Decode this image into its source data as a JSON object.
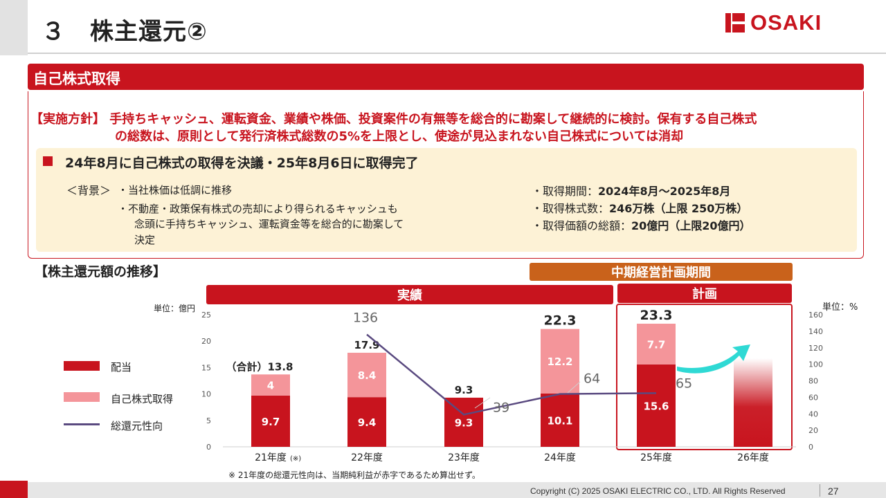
{
  "header": {
    "title": "３　株主還元②",
    "logo_text": "OSAKI"
  },
  "section": {
    "label": "自己株式取得",
    "policy_line1": "【実施方針】 手持ちキャッシュ、運転資金、業績や株価、投資案件の有無等を総合的に勘案して継続的に検討。保有する自己株式",
    "policy_line2": "の総数は、原則として発行済株式総数の5%を上限とし、使途が見込まれない自己株式については消却"
  },
  "panel": {
    "headline": "24年8月に自己株式の取得を決議・25年8月6日に取得完了",
    "background_label": "＜背景＞",
    "background_items": [
      "・当社株価は低調に推移",
      "・不動産・政策保有株式の売却により得られるキャッシュも",
      "念頭に手持ちキャッシュ、運転資金等を総合的に勘案して",
      "決定"
    ],
    "facts": [
      {
        "label": "・取得期間：",
        "value": "2024年8月～2025年8月"
      },
      {
        "label": "・取得株式数：",
        "value": "246万株（上限 250万株）"
      },
      {
        "label": "・取得価額の総額：",
        "value": "20億円（上限20億円）"
      }
    ]
  },
  "trend": {
    "title": "【株主還元額の推移】",
    "band_plan_period": "中期経営計画期間",
    "band_actual": "実績",
    "band_plan": "計画",
    "unit_left": "単位：億円",
    "unit_right": "単位：%",
    "legend": {
      "dividend": "配当",
      "buyback": "自己株式取得",
      "ratio": "総還元性向"
    },
    "footnote": "※ 21年度の総還元性向は、当期純利益が赤字であるため算出せず。",
    "total_prefix": "（合計）",
    "first_year_note": "(※)"
  },
  "chart_data": {
    "type": "bar",
    "categories": [
      "21年度",
      "22年度",
      "23年度",
      "24年度",
      "25年度",
      "26年度"
    ],
    "series": [
      {
        "name": "配当",
        "values": [
          9.7,
          9.4,
          9.3,
          10.1,
          15.6,
          null
        ]
      },
      {
        "name": "自己株式取得",
        "values": [
          4.0,
          8.4,
          0,
          12.2,
          7.7,
          null
        ]
      },
      {
        "name": "総還元性向",
        "type": "line",
        "axis": "right",
        "values": [
          null,
          136,
          39,
          64,
          65,
          null
        ]
      }
    ],
    "totals": [
      "13.8",
      "17.9",
      "9.3",
      "22.3",
      "23.3",
      null
    ],
    "y_left": {
      "min": 0,
      "max": 25,
      "ticks": [
        0,
        5,
        10,
        15,
        20,
        25
      ]
    },
    "y_right": {
      "min": 0,
      "max": 160,
      "ticks": [
        0,
        20,
        40,
        60,
        80,
        100,
        120,
        140,
        160
      ]
    },
    "colors": {
      "dividend": "#c8141e",
      "buyback": "#f4959a",
      "ratio": "#5a4a80",
      "arrow": "#2fd9d4",
      "plan_box": "#c8141e"
    }
  },
  "footer": {
    "copyright": "Copyright (C) 2025 OSAKI ELECTRIC CO., LTD. All Rights Reserved",
    "page_number": "27"
  }
}
